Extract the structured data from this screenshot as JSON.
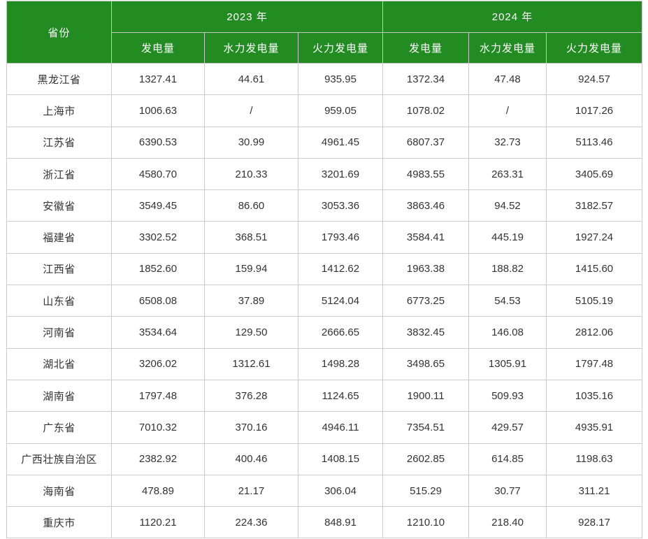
{
  "colors": {
    "header_bg": "#228B22",
    "header_text": "#ffffff",
    "body_text": "#333333",
    "grid_border": "#cccccc"
  },
  "chart_data": {
    "type": "table",
    "province_header": "省份",
    "year_groups": [
      {
        "label": "2023 年",
        "columns": [
          "发电量",
          "水力发电量",
          "火力发电量"
        ]
      },
      {
        "label": "2024 年",
        "columns": [
          "发电量",
          "水力发电量",
          "火力发电量"
        ]
      }
    ],
    "rows": [
      [
        "黑龙江省",
        "1327.41",
        "44.61",
        "935.95",
        "1372.34",
        "47.48",
        "924.57"
      ],
      [
        "上海市",
        "1006.63",
        "/",
        "959.05",
        "1078.02",
        "/",
        "1017.26"
      ],
      [
        "江苏省",
        "6390.53",
        "30.99",
        "4961.45",
        "6807.37",
        "32.73",
        "5113.46"
      ],
      [
        "浙江省",
        "4580.70",
        "210.33",
        "3201.69",
        "4983.55",
        "263.31",
        "3405.69"
      ],
      [
        "安徽省",
        "3549.45",
        "86.60",
        "3053.36",
        "3863.46",
        "94.52",
        "3182.57"
      ],
      [
        "福建省",
        "3302.52",
        "368.51",
        "1793.46",
        "3584.41",
        "445.19",
        "1927.24"
      ],
      [
        "江西省",
        "1852.60",
        "159.94",
        "1412.62",
        "1963.38",
        "188.82",
        "1415.60"
      ],
      [
        "山东省",
        "6508.08",
        "37.89",
        "5124.04",
        "6773.25",
        "54.53",
        "5105.19"
      ],
      [
        "河南省",
        "3534.64",
        "129.50",
        "2666.65",
        "3832.45",
        "146.08",
        "2812.06"
      ],
      [
        "湖北省",
        "3206.02",
        "1312.61",
        "1498.28",
        "3498.65",
        "1305.91",
        "1797.48"
      ],
      [
        "湖南省",
        "1797.48",
        "376.28",
        "1124.65",
        "1900.11",
        "509.93",
        "1035.16"
      ],
      [
        "广东省",
        "7010.32",
        "370.16",
        "4946.11",
        "7354.51",
        "429.57",
        "4935.91"
      ],
      [
        "广西壮族自治区",
        "2382.92",
        "400.46",
        "1408.15",
        "2602.85",
        "614.85",
        "1198.63"
      ],
      [
        "海南省",
        "478.89",
        "21.17",
        "306.04",
        "515.29",
        "30.77",
        "311.21"
      ],
      [
        "重庆市",
        "1120.21",
        "224.36",
        "848.91",
        "1210.10",
        "218.40",
        "928.17"
      ]
    ]
  }
}
